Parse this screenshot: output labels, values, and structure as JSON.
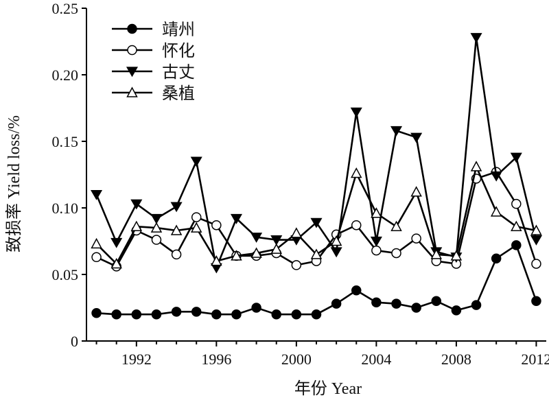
{
  "chart_data": {
    "type": "line",
    "xlabel": "年份 Year",
    "ylabel": "致损率 Yield loss/%",
    "xlim": [
      1989.5,
      2012.5
    ],
    "ylim": [
      0,
      0.25
    ],
    "xticks": [
      1992,
      1996,
      2000,
      2004,
      2008,
      2012
    ],
    "yticks": [
      0,
      0.05,
      0.1,
      0.15,
      0.2,
      0.25
    ],
    "ytick_labels": [
      "0",
      "0.05",
      "0.10",
      "0.15",
      "0.20",
      "0.25"
    ],
    "grid": false,
    "legend_position": "top-left",
    "x": [
      1990,
      1991,
      1992,
      1993,
      1994,
      1995,
      1996,
      1997,
      1998,
      1999,
      2000,
      2001,
      2002,
      2003,
      2004,
      2005,
      2006,
      2007,
      2008,
      2009,
      2010,
      2011,
      2012
    ],
    "series": [
      {
        "name": "靖州",
        "marker": "filled-circle",
        "values": [
          0.021,
          0.02,
          0.02,
          0.02,
          0.022,
          0.022,
          0.02,
          0.02,
          0.025,
          0.02,
          0.02,
          0.02,
          0.028,
          0.038,
          0.029,
          0.028,
          0.025,
          0.03,
          0.023,
          0.027,
          0.062,
          0.072,
          0.03
        ]
      },
      {
        "name": "怀化",
        "marker": "open-circle",
        "values": [
          0.063,
          0.056,
          0.083,
          0.076,
          0.065,
          0.093,
          0.087,
          0.064,
          0.064,
          0.066,
          0.057,
          0.06,
          0.08,
          0.087,
          0.068,
          0.066,
          0.077,
          0.06,
          0.058,
          0.122,
          0.127,
          0.103,
          0.058
        ]
      },
      {
        "name": "古丈",
        "marker": "filled-triangle-down",
        "values": [
          0.11,
          0.074,
          0.103,
          0.092,
          0.101,
          0.135,
          0.055,
          0.092,
          0.078,
          0.076,
          0.076,
          0.089,
          0.067,
          0.172,
          0.075,
          0.158,
          0.153,
          0.067,
          0.063,
          0.228,
          0.124,
          0.138,
          0.076
        ]
      },
      {
        "name": "桑植",
        "marker": "open-triangle-up",
        "values": [
          0.073,
          0.058,
          0.086,
          0.085,
          0.083,
          0.085,
          0.06,
          0.064,
          0.066,
          0.069,
          0.081,
          0.065,
          0.075,
          0.126,
          0.096,
          0.086,
          0.112,
          0.065,
          0.064,
          0.131,
          0.097,
          0.086,
          0.083
        ]
      }
    ]
  }
}
